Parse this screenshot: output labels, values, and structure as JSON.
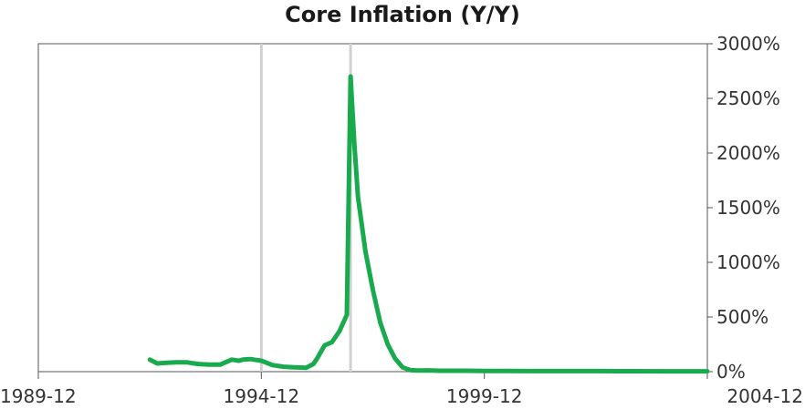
{
  "chart_data": {
    "type": "line",
    "title": "Core Inflation (Y/Y)",
    "xlabel": "",
    "ylabel": "",
    "x_ticks": [
      "1989-12",
      "1994-12",
      "1999-12",
      "2004-12"
    ],
    "y_ticks": [
      "0%",
      "500%",
      "1000%",
      "1500%",
      "2000%",
      "2500%",
      "3000%"
    ],
    "y_tick_values": [
      0,
      500,
      1000,
      1500,
      2000,
      2500,
      3000
    ],
    "xlim": [
      "1989-12",
      "2004-12"
    ],
    "ylim": [
      0,
      3000
    ],
    "y_axis_position": "right",
    "grid": false,
    "legend": "none",
    "line_color": "#1aaa4e",
    "event_line_color": "#d0d0d0",
    "vertical_lines": [
      "1994-12",
      "1996-12"
    ],
    "series": [
      {
        "x": [
          "1992-06",
          "1992-08",
          "1992-10",
          "1993-01",
          "1993-04",
          "1993-07",
          "1993-10",
          "1994-01",
          "1994-04",
          "1994-06",
          "1994-07",
          "1994-09",
          "1994-10",
          "1994-12",
          "1995-03",
          "1995-06",
          "1995-09",
          "1995-12",
          "1996-02",
          "1996-03",
          "1996-05",
          "1996-07",
          "1996-09",
          "1996-11",
          "1996-12",
          "1997-01",
          "1997-02",
          "1997-04",
          "1997-06",
          "1997-08",
          "1997-10",
          "1997-12",
          "1998-02",
          "1998-04",
          "1998-06",
          "1998-09",
          "1998-12",
          "1999-06",
          "1999-12",
          "2000-06",
          "2000-12",
          "2001-06",
          "2001-12",
          "2002-06",
          "2002-12",
          "2003-06",
          "2003-12",
          "2004-06",
          "2004-12"
        ],
        "values": [
          110,
          75,
          80,
          85,
          85,
          70,
          65,
          65,
          110,
          100,
          110,
          115,
          110,
          100,
          60,
          45,
          40,
          35,
          70,
          120,
          240,
          270,
          370,
          520,
          2700,
          2100,
          1600,
          1100,
          750,
          450,
          250,
          120,
          40,
          15,
          10,
          12,
          8,
          8,
          6,
          6,
          5,
          5,
          5,
          5,
          4,
          4,
          3,
          3,
          3
        ]
      }
    ]
  }
}
